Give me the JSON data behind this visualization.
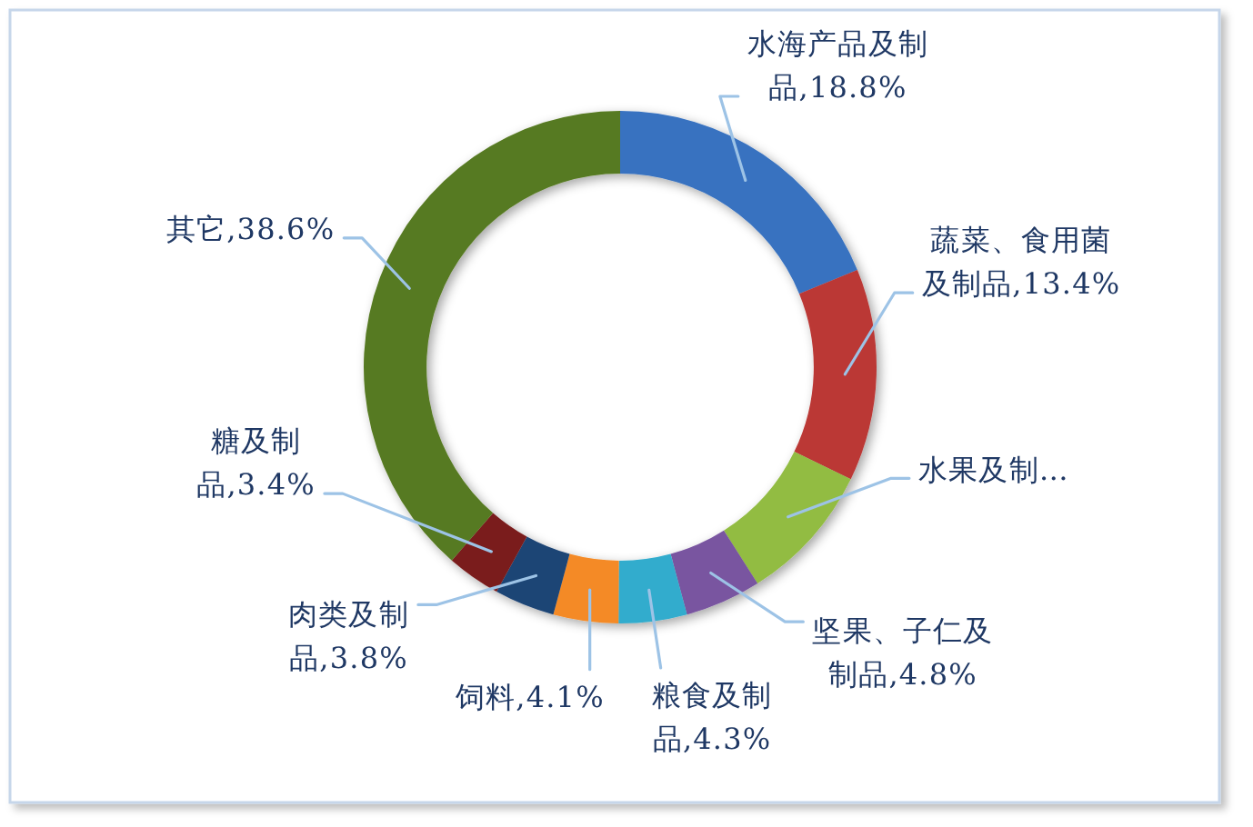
{
  "chart_data": {
    "type": "donut",
    "categories": [
      "水海产品及制品",
      "蔬菜、食用菌及制品",
      "水果及制…",
      "坚果、子仁及制品",
      "粮食及制品",
      "饲料",
      "肉类及制品",
      "糖及制品",
      "其它"
    ],
    "values": [
      18.8,
      13.4,
      8.8,
      4.8,
      4.3,
      4.1,
      3.8,
      3.4,
      38.6
    ],
    "value_labels": [
      "18.8%",
      "13.4%",
      null,
      "4.8%",
      "4.3%",
      "4.1%",
      "3.8%",
      "3.4%",
      "38.6%"
    ],
    "colors": [
      "#3872c0",
      "#bb3735",
      "#92bc43",
      "#7954a0",
      "#31accd",
      "#f48a25",
      "#1e4475",
      "#7a1e1e",
      "#577a21"
    ]
  }
}
